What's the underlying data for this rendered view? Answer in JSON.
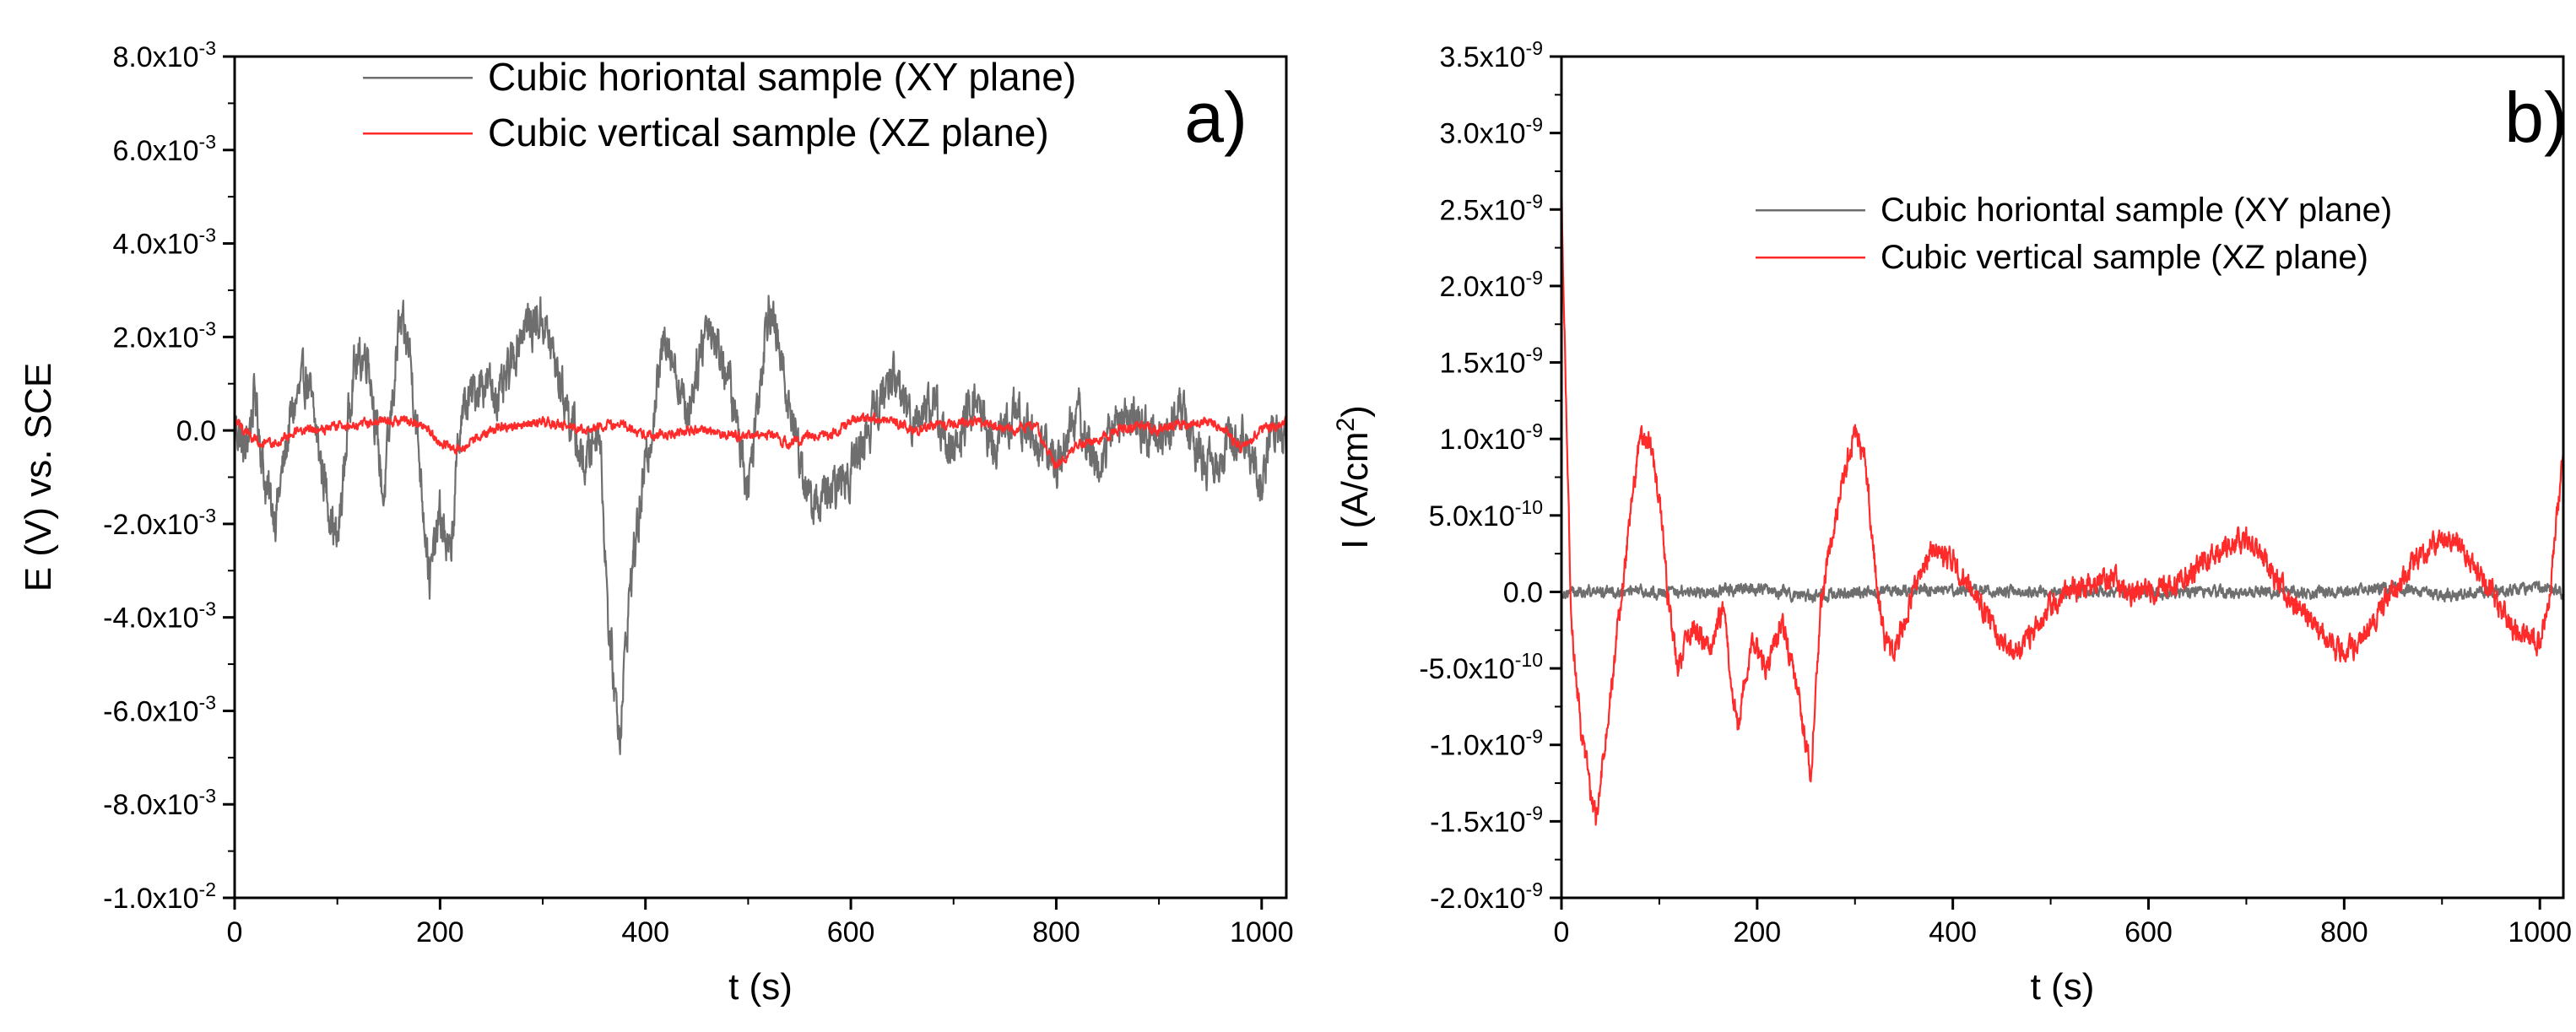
{
  "chart_data": [
    {
      "id": "a",
      "type": "line",
      "panel_label": "a)",
      "xlabel": "t (s)",
      "ylabel": "E (V) vs. SCE",
      "xlim": [
        0,
        1024
      ],
      "ylim": [
        -0.01,
        0.008
      ],
      "x_ticks": [
        {
          "v": 0,
          "label": "0"
        },
        {
          "v": 200,
          "label": "200"
        },
        {
          "v": 400,
          "label": "400"
        },
        {
          "v": 600,
          "label": "600"
        },
        {
          "v": 800,
          "label": "800"
        },
        {
          "v": 1000,
          "label": "1000"
        }
      ],
      "y_ticks": [
        {
          "v": 0.008,
          "m": "8.0x10",
          "e": "-3"
        },
        {
          "v": 0.006,
          "m": "6.0x10",
          "e": "-3"
        },
        {
          "v": 0.004,
          "m": "4.0x10",
          "e": "-3"
        },
        {
          "v": 0.002,
          "m": "2.0x10",
          "e": "-3"
        },
        {
          "v": 0.0,
          "m": "0.0",
          "e": ""
        },
        {
          "v": -0.002,
          "m": "-2.0x10",
          "e": "-3"
        },
        {
          "v": -0.004,
          "m": "-4.0x10",
          "e": "-3"
        },
        {
          "v": -0.006,
          "m": "-6.0x10",
          "e": "-3"
        },
        {
          "v": -0.008,
          "m": "-8.0x10",
          "e": "-3"
        },
        {
          "v": -0.01,
          "m": "-1.0x10",
          "e": "-2"
        }
      ],
      "legend_position": "top-right",
      "grid": false,
      "series": [
        {
          "name": "Cubic horiontal sample (XY plane)",
          "color": "#6e6e6e",
          "noise": 0.0004,
          "x": [
            0,
            10,
            20,
            30,
            40,
            55,
            70,
            85,
            100,
            115,
            130,
            145,
            160,
            170,
            180,
            190,
            200,
            210,
            220,
            240,
            260,
            280,
            300,
            320,
            340,
            355,
            365,
            375,
            385,
            400,
            420,
            440,
            460,
            480,
            500,
            520,
            540,
            560,
            580,
            600,
            620,
            640,
            660,
            680,
            700,
            720,
            740,
            760,
            780,
            800,
            820,
            840,
            860,
            880,
            900,
            920,
            940,
            960,
            980,
            1000,
            1010,
            1024
          ],
          "y": [
            0.0002,
            -0.0005,
            0.0008,
            -0.0012,
            -0.0018,
            0.0003,
            0.0012,
            -0.0008,
            -0.0025,
            0.0013,
            0.0017,
            -0.0015,
            0.0022,
            0.0018,
            -0.0006,
            -0.0032,
            -0.0018,
            -0.0028,
            0.0003,
            0.0011,
            0.0007,
            0.0022,
            0.0024,
            0.0008,
            -0.0008,
            0.0002,
            -0.0045,
            -0.0065,
            -0.0033,
            -0.0008,
            0.0022,
            0.0003,
            0.0024,
            0.0012,
            -0.0012,
            0.0028,
            0.0006,
            -0.0016,
            -0.0014,
            -0.0008,
            0.0002,
            0.0012,
            0.0003,
            0.0006,
            -0.0006,
            0.0007,
            -0.0004,
            0.0004,
            -0.0002,
            -0.0007,
            0.0004,
            -0.0008,
            0.0003,
            0.0001,
            -0.0002,
            0.0005,
            -0.0006,
            -0.0006,
            0.0001,
            -0.0012,
            0.0002,
            -0.0004
          ]
        },
        {
          "name": "Cubic vertical sample (XZ plane)",
          "color": "#ff2a2a",
          "noise": 8e-05,
          "x": [
            0,
            20,
            40,
            60,
            80,
            100,
            120,
            140,
            160,
            180,
            200,
            220,
            240,
            260,
            280,
            300,
            320,
            340,
            360,
            380,
            400,
            420,
            440,
            460,
            480,
            500,
            520,
            540,
            560,
            580,
            600,
            620,
            640,
            660,
            680,
            700,
            720,
            740,
            760,
            780,
            800,
            820,
            840,
            860,
            880,
            900,
            920,
            940,
            960,
            980,
            1000,
            1024
          ],
          "y": [
            0.0002,
            -0.0002,
            -0.0003,
            0.0,
            0.0,
            0.0001,
            0.0001,
            0.0002,
            0.0002,
            0.0002,
            -0.0003,
            -0.0004,
            -0.0001,
            0.0001,
            0.0001,
            0.0002,
            0.0001,
            0.0,
            0.0001,
            0.0001,
            -0.0001,
            -0.0001,
            0.0,
            0.0,
            -0.0001,
            -0.0001,
            -0.0001,
            -0.0003,
            -0.0001,
            -0.0001,
            0.0002,
            0.0003,
            0.0002,
            0.0,
            0.0001,
            0.0001,
            0.0002,
            0.0001,
            0.0,
            0.0001,
            -0.0008,
            -0.0003,
            -0.0002,
            0.0,
            0.0001,
            0.0,
            0.0001,
            0.0002,
            0.0001,
            -0.0004,
            0.0,
            0.0002
          ]
        }
      ]
    },
    {
      "id": "b",
      "type": "line",
      "panel_label": "b)",
      "xlabel": "t (s)",
      "ylabel_parts": [
        "I (A/cm",
        "2",
        ")"
      ],
      "xlim": [
        0,
        1024
      ],
      "ylim": [
        -2e-09,
        3.5e-09
      ],
      "x_ticks": [
        {
          "v": 0,
          "label": "0"
        },
        {
          "v": 200,
          "label": "200"
        },
        {
          "v": 400,
          "label": "400"
        },
        {
          "v": 600,
          "label": "600"
        },
        {
          "v": 800,
          "label": "800"
        },
        {
          "v": 1000,
          "label": "1000"
        }
      ],
      "y_ticks": [
        {
          "v": 3.5e-09,
          "m": "3.5x10",
          "e": "-9"
        },
        {
          "v": 3e-09,
          "m": "3.0x10",
          "e": "-9"
        },
        {
          "v": 2.5e-09,
          "m": "2.5x10",
          "e": "-9"
        },
        {
          "v": 2e-09,
          "m": "2.0x10",
          "e": "-9"
        },
        {
          "v": 1.5e-09,
          "m": "1.5x10",
          "e": "-9"
        },
        {
          "v": 1e-09,
          "m": "1.0x10",
          "e": "-9"
        },
        {
          "v": 5e-10,
          "m": "5.0x10",
          "e": "-10"
        },
        {
          "v": 0.0,
          "m": "0.0",
          "e": ""
        },
        {
          "v": -5e-10,
          "m": "-5.0x10",
          "e": "-10"
        },
        {
          "v": -1e-09,
          "m": "-1.0x10",
          "e": "-9"
        },
        {
          "v": -1.5e-09,
          "m": "-1.5x10",
          "e": "-9"
        },
        {
          "v": -2e-09,
          "m": "-2.0x10",
          "e": "-9"
        }
      ],
      "legend_position": "upper-right",
      "grid": false,
      "series": [
        {
          "name": "Cubic horiontal sample (XY plane)",
          "color": "#6e6e6e",
          "noise": 3e-11,
          "x": [
            0,
            50,
            100,
            150,
            200,
            250,
            300,
            350,
            400,
            450,
            500,
            550,
            600,
            650,
            700,
            750,
            800,
            850,
            900,
            950,
            1000,
            1024
          ],
          "y": [
            0.0,
            0.0,
            0.0,
            0.0,
            3e-11,
            -3e-11,
            0.0,
            0.0,
            2e-11,
            0.0,
            0.0,
            0.0,
            0.0,
            0.0,
            0.0,
            0.0,
            0.0,
            3e-11,
            -2e-11,
            0.0,
            3e-11,
            -1e-11
          ]
        },
        {
          "name": "Cubic vertical sample (XZ plane)",
          "color": "#ff2a2a",
          "noise": 6e-11,
          "x": [
            0,
            5,
            10,
            20,
            35,
            50,
            65,
            80,
            90,
            100,
            110,
            120,
            135,
            150,
            165,
            180,
            195,
            210,
            225,
            240,
            255,
            265,
            280,
            290,
            300,
            310,
            320,
            330,
            340,
            360,
            380,
            400,
            420,
            440,
            460,
            480,
            500,
            520,
            540,
            560,
            580,
            600,
            620,
            640,
            660,
            680,
            700,
            720,
            740,
            760,
            780,
            800,
            820,
            840,
            860,
            880,
            900,
            920,
            940,
            960,
            980,
            1000,
            1010,
            1024
          ],
          "y": [
            2.6e-09,
            1.2e-09,
            -2e-10,
            -9e-10,
            -1.5e-09,
            -7e-10,
            2e-10,
            1e-09,
            1e-09,
            6e-10,
            -1e-10,
            -5e-10,
            -2e-10,
            -4e-10,
            -1e-10,
            -9e-10,
            -3e-10,
            -5e-10,
            -2e-10,
            -6e-10,
            -1.2e-09,
            -1e-10,
            5e-10,
            8e-10,
            1.05e-09,
            9e-10,
            2e-10,
            -3e-10,
            -4e-10,
            0.0,
            3e-10,
            2e-10,
            0.0,
            -2e-10,
            -4e-10,
            -3e-10,
            -1e-10,
            0.0,
            5e-11,
            1e-10,
            0.0,
            0.0,
            5e-11,
            1e-10,
            2e-10,
            3e-10,
            3.5e-10,
            2e-10,
            0.0,
            -1.5e-10,
            -3e-10,
            -4e-10,
            -3e-10,
            -1e-10,
            1e-10,
            2.5e-10,
            3.5e-10,
            3e-10,
            1e-10,
            -1e-10,
            -3e-10,
            -3.5e-10,
            0.0,
            9e-10
          ]
        }
      ]
    }
  ]
}
